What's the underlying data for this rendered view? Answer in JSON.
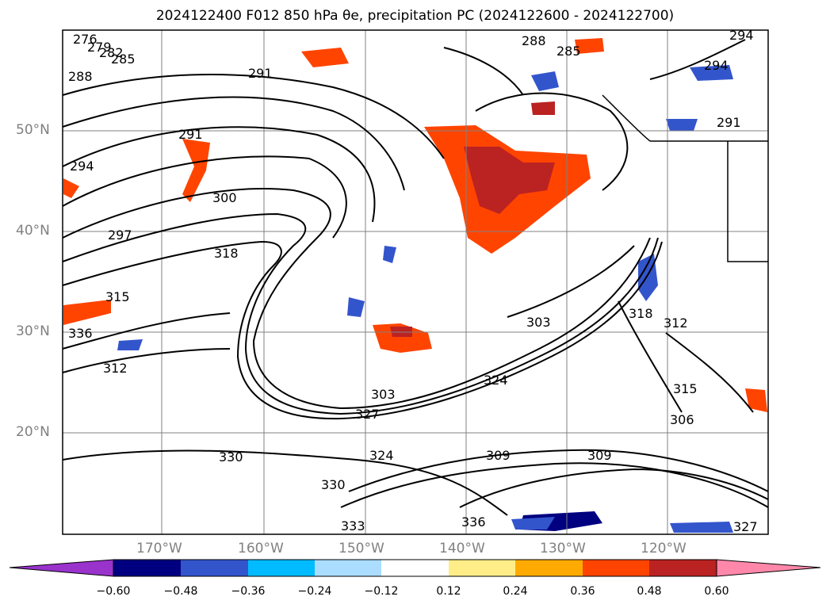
{
  "title_text": "2024122400 F012 850 hPa θe, precipitation PC (2024122600 - 2024122700)",
  "map": {
    "lat_labels": [
      "50°N",
      "40°N",
      "30°N",
      "20°N"
    ],
    "lon_labels": [
      "170°W",
      "160°W",
      "150°W",
      "140°W",
      "130°W",
      "120°W"
    ],
    "gridline_color": "#808080"
  },
  "contours": {
    "variable": "theta-e",
    "line_color": "#000000",
    "labels": [
      "276",
      "279",
      "282",
      "285",
      "288",
      "291",
      "291",
      "294",
      "294",
      "297",
      "300",
      "303",
      "303",
      "309",
      "309",
      "312",
      "312",
      "315",
      "315",
      "318",
      "318",
      "324",
      "324",
      "327",
      "327",
      "330",
      "330",
      "333",
      "336",
      "336",
      "306",
      "288",
      "285",
      "291",
      "294"
    ]
  },
  "colorbar": {
    "ticks": [
      "−0.60",
      "−0.48",
      "−0.36",
      "−0.24",
      "−0.12",
      "0.12",
      "0.24",
      "0.36",
      "0.48",
      "0.60"
    ],
    "colors": [
      "#9933cc",
      "#000080",
      "#3355cc",
      "#00bbff",
      "#aaddff",
      "#ffffff",
      "#ffee88",
      "#ffaa00",
      "#ff4400",
      "#bb2222",
      "#ff88aa"
    ]
  }
}
